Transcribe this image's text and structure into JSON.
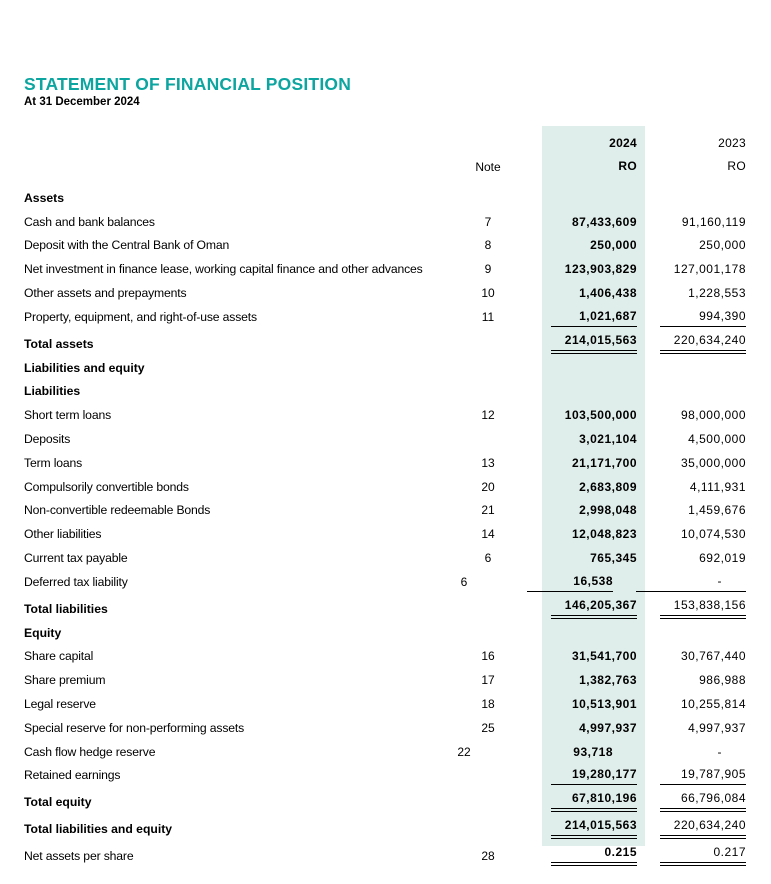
{
  "header": {
    "title": "STATEMENT OF FINANCIAL POSITION",
    "subtitle": "At 31 December 2024"
  },
  "colors": {
    "accent_teal": "#0da5a0",
    "highlight_column": "#dfeeeb",
    "text": "#000000"
  },
  "table": {
    "columns": {
      "note": "Note",
      "y2024": "2024",
      "y2023": "2023",
      "unit_2024": "RO",
      "unit_2023": "RO"
    },
    "rows": [
      {
        "type": "section",
        "label": "Assets"
      },
      {
        "type": "item",
        "label": "Cash and bank balances",
        "note": "7",
        "v2024": "87,433,609",
        "v2023": "91,160,119"
      },
      {
        "type": "item",
        "label": "Deposit with the Central Bank of Oman",
        "note": "8",
        "v2024": "250,000",
        "v2023": "250,000"
      },
      {
        "type": "item",
        "label": "Net investment in finance lease, working capital finance and other advances",
        "note": "9",
        "v2024": "123,903,829",
        "v2023": "127,001,178"
      },
      {
        "type": "item",
        "label": "Other assets and prepayments",
        "note": "10",
        "v2024": "1,406,438",
        "v2023": "1,228,553"
      },
      {
        "type": "item",
        "label": "Property, equipment, and right-of-use assets",
        "note": "11",
        "v2024": "1,021,687",
        "v2023": "994,390",
        "underline": "single"
      },
      {
        "type": "total",
        "label": "Total assets",
        "v2024": "214,015,563",
        "v2023": "220,634,240",
        "underline": "double"
      },
      {
        "type": "section",
        "label": "Liabilities and equity"
      },
      {
        "type": "section",
        "label": "Liabilities"
      },
      {
        "type": "item",
        "label": "Short term loans",
        "note": "12",
        "v2024": "103,500,000",
        "v2023": "98,000,000"
      },
      {
        "type": "item",
        "label": "Deposits",
        "v2024": "3,021,104",
        "v2023": "4,500,000"
      },
      {
        "type": "item",
        "label": "Term loans",
        "note": "13",
        "v2024": "21,171,700",
        "v2023": "35,000,000"
      },
      {
        "type": "item",
        "label": "Compulsorily convertible bonds",
        "note": "20",
        "v2024": "2,683,809",
        "v2023": "4,111,931"
      },
      {
        "type": "item",
        "label": "Non-convertible redeemable Bonds",
        "note": "21",
        "v2024": "2,998,048",
        "v2023": "1,459,676"
      },
      {
        "type": "item",
        "label": "Other liabilities",
        "note": "14",
        "v2024": "12,048,823",
        "v2023": "10,074,530"
      },
      {
        "type": "item",
        "label": "Current tax payable",
        "note": "6",
        "v2024": "765,345",
        "v2023": "692,019"
      },
      {
        "type": "item",
        "label": "Deferred tax liability",
        "note": "6",
        "v2024": "16,538",
        "v2023": "-",
        "underline": "single"
      },
      {
        "type": "total",
        "label": "Total liabilities",
        "v2024": "146,205,367",
        "v2023": "153,838,156",
        "underline": "double"
      },
      {
        "type": "section",
        "label": "Equity"
      },
      {
        "type": "item",
        "label": "Share capital",
        "note": "16",
        "v2024": "31,541,700",
        "v2023": "30,767,440"
      },
      {
        "type": "item",
        "label": "Share premium",
        "note": "17",
        "v2024": "1,382,763",
        "v2023": "986,988"
      },
      {
        "type": "item",
        "label": "Legal reserve",
        "note": "18",
        "v2024": "10,513,901",
        "v2023": "10,255,814"
      },
      {
        "type": "item",
        "label": "Special reserve for non-performing assets",
        "note": "25",
        "v2024": "4,997,937",
        "v2023": "4,997,937"
      },
      {
        "type": "item",
        "label": "Cash flow hedge reserve",
        "note": "22",
        "v2024": "93,718",
        "v2023": "-"
      },
      {
        "type": "item",
        "label": "Retained earnings",
        "v2024": "19,280,177",
        "v2023": "19,787,905",
        "underline": "single"
      },
      {
        "type": "total",
        "label": "Total equity",
        "v2024": "67,810,196",
        "v2023": "66,796,084",
        "underline": "double"
      },
      {
        "type": "total",
        "label": "Total liabilities and equity",
        "v2024": "214,015,563",
        "v2023": "220,634,240",
        "underline": "double"
      },
      {
        "type": "item",
        "label": "Net assets per share",
        "note": "28",
        "v2024": "0.215",
        "v2023": "0.217",
        "underline": "double"
      }
    ]
  }
}
